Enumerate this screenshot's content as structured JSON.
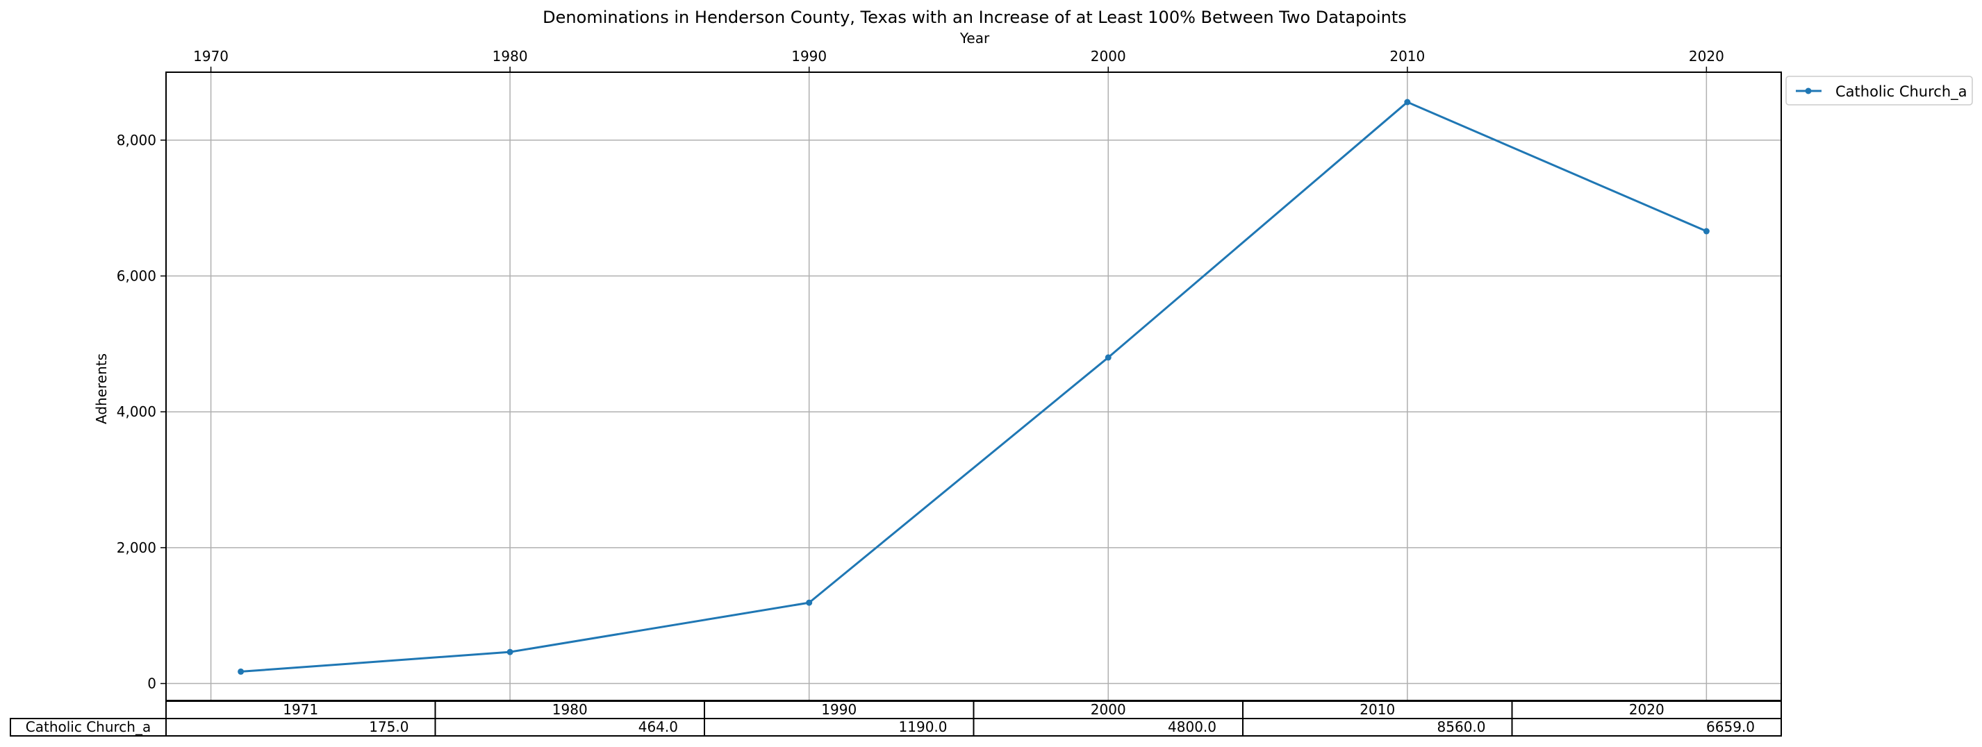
{
  "chart_data": {
    "type": "line",
    "title": "Denominations in Henderson County, Texas with an Increase of at Least 100% Between Two Datapoints",
    "xlabel": "Year",
    "ylabel": "Adherents",
    "x_axis_position": "top",
    "x": [
      1971,
      1980,
      1990,
      2000,
      2010,
      2020
    ],
    "xlim": [
      1968.5,
      2022.5
    ],
    "ylim": [
      -250,
      9000
    ],
    "xticks": [
      "1970",
      "1980",
      "1990",
      "2000",
      "2010",
      "2020"
    ],
    "yticks": [
      "0",
      "2,000",
      "4,000",
      "6,000",
      "8,000"
    ],
    "grid": true,
    "legend_position": "outside-top-right",
    "series": [
      {
        "name": "Catholic Church_a",
        "color": "#1f77b4",
        "marker": "dot",
        "values": [
          175,
          464,
          1190,
          4800,
          8560,
          6659
        ]
      }
    ],
    "table": {
      "columns": [
        "1971",
        "1980",
        "1990",
        "2000",
        "2010",
        "2020"
      ],
      "rows": [
        {
          "label": "Catholic Church_a",
          "cells": [
            "175.0",
            "464.0",
            "1190.0",
            "4800.0",
            "8560.0",
            "6659.0"
          ]
        }
      ]
    }
  }
}
